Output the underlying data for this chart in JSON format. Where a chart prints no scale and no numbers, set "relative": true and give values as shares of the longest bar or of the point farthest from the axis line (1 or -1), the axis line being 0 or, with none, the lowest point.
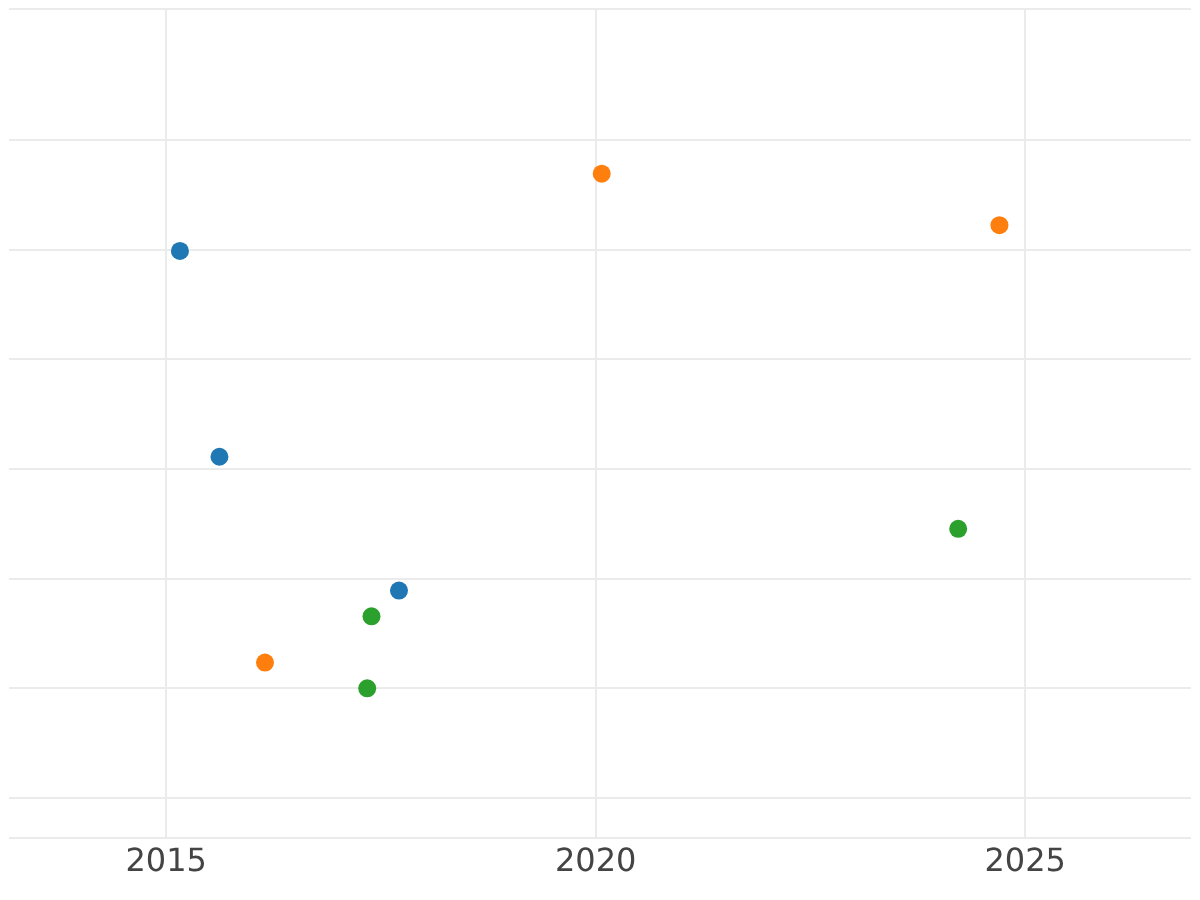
{
  "chart_data": {
    "type": "scatter",
    "relative": true,
    "marker": "circle",
    "grid": true,
    "legend": false,
    "tick_labels": "x",
    "xlim": [
      2013.17,
      2026.93
    ],
    "xticks": [
      2015,
      2020,
      2025
    ],
    "series": [
      {
        "color": "#1f77b4",
        "x": [
          2015.16,
          2015.62,
          2017.71
        ],
        "values": [
          0.85,
          0.45,
          0.19
        ]
      },
      {
        "color": "#ff7f0e",
        "x": [
          2020.07,
          2024.7,
          2016.15
        ],
        "values": [
          1,
          0.9,
          0.05
        ]
      },
      {
        "color": "#2ca02c",
        "x": [
          2017.39,
          2017.34,
          2024.22
        ],
        "values": [
          0.14,
          0,
          0.31
        ]
      }
    ]
  }
}
